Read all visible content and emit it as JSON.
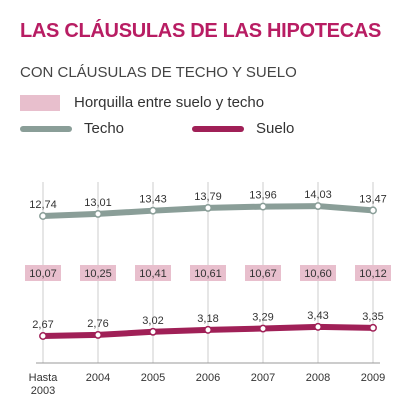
{
  "title": "LAS CLÁUSULAS DE LAS HIPOTECAS",
  "subtitle": "CON CLÁUSULAS DE TECHO Y SUELO",
  "colors": {
    "title": "#b81d63",
    "techo": "#8a9e98",
    "suelo": "#a02057",
    "band": "#e8bfcd",
    "grid": "#cccccc"
  },
  "legend": {
    "band": "Horquilla entre suelo y techo",
    "techo": "Techo",
    "suelo": "Suelo"
  },
  "chart_data": {
    "type": "line",
    "categories": [
      [
        "Hasta",
        "2003"
      ],
      [
        "2004"
      ],
      [
        "2005"
      ],
      [
        "2006"
      ],
      [
        "2007"
      ],
      [
        "2008"
      ],
      [
        "2009"
      ]
    ],
    "series": [
      {
        "name": "Techo",
        "values": [
          12.74,
          13.01,
          13.43,
          13.79,
          13.96,
          14.03,
          13.47
        ],
        "labels": [
          "12,74",
          "13,01",
          "13,43",
          "13,79",
          "13,96",
          "14,03",
          "13,47"
        ]
      },
      {
        "name": "Suelo",
        "values": [
          2.67,
          2.76,
          3.02,
          3.18,
          3.29,
          3.43,
          3.35
        ],
        "labels": [
          "2,67",
          "2,76",
          "3,02",
          "3,18",
          "3,29",
          "3,43",
          "3,35"
        ]
      }
    ],
    "band": {
      "name": "Horquilla entre suelo y techo",
      "values": [
        10.07,
        10.25,
        10.41,
        10.61,
        10.67,
        10.6,
        10.12
      ],
      "labels": [
        "10,07",
        "10,25",
        "10,41",
        "10,61",
        "10,67",
        "10,60",
        "10,12"
      ]
    },
    "legend_position": "top-left",
    "grid": "vertical"
  }
}
